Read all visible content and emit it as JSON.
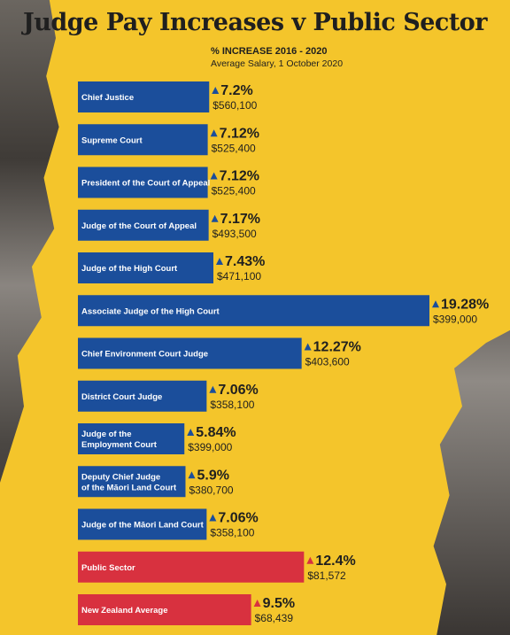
{
  "header": {
    "title": "Judge Pay Increases v Public Sector",
    "subtitle": "% INCREASE 2016 - 2020",
    "subsubtitle": "Average Salary, 1 October 2020"
  },
  "colors": {
    "background": "#f4c52b",
    "judge_bar": "#1b4e9b",
    "public_bar": "#d8313f",
    "judge_arrow": "#1b4e9b",
    "public_arrow": "#d8313f",
    "text": "#1f1f1f"
  },
  "chart_data": {
    "type": "bar",
    "orientation": "horizontal",
    "title": "Judge Pay Increases v Public Sector",
    "subtitle": "% INCREASE 2016 - 2020",
    "note": "Average Salary, 1 October 2020",
    "categories": [
      [
        "Chief Justice"
      ],
      [
        "Supreme Court"
      ],
      [
        "President of the Court of Appeal"
      ],
      [
        "Judge of the Court of Appeal"
      ],
      [
        "Judge of the High Court"
      ],
      [
        "Associate Judge of the High Court"
      ],
      [
        "Chief Environment Court Judge"
      ],
      [
        "District Court Judge"
      ],
      [
        "Judge of the",
        "Employment Court"
      ],
      [
        "Deputy Chief Judge",
        "of the Māori Land Court"
      ],
      [
        "Judge of the Māori Land Court"
      ],
      [
        "Public Sector"
      ],
      [
        "New Zealand Average"
      ]
    ],
    "values": [
      7.2,
      7.12,
      7.12,
      7.17,
      7.43,
      19.28,
      12.27,
      7.06,
      5.84,
      5.9,
      7.06,
      12.4,
      9.5
    ],
    "value_labels": [
      "7.2%",
      "7.12%",
      "7.12%",
      "7.17%",
      "7.43%",
      "19.28%",
      "12.27%",
      "7.06%",
      "5.84%",
      "5.9%",
      "7.06%",
      "12.4%",
      "9.5%"
    ],
    "salaries": [
      "$560,100",
      "$525,400",
      "$525,400",
      "$493,500",
      "$471,100",
      "$399,000",
      "$403,600",
      "$358,100",
      "$399,000",
      "$380,700",
      "$358,100",
      "$81,572",
      "$68,439"
    ],
    "group": [
      "judge",
      "judge",
      "judge",
      "judge",
      "judge",
      "judge",
      "judge",
      "judge",
      "judge",
      "judge",
      "judge",
      "public",
      "public"
    ],
    "xlim": [
      0,
      19.28
    ],
    "grid": false,
    "legend": "none"
  }
}
